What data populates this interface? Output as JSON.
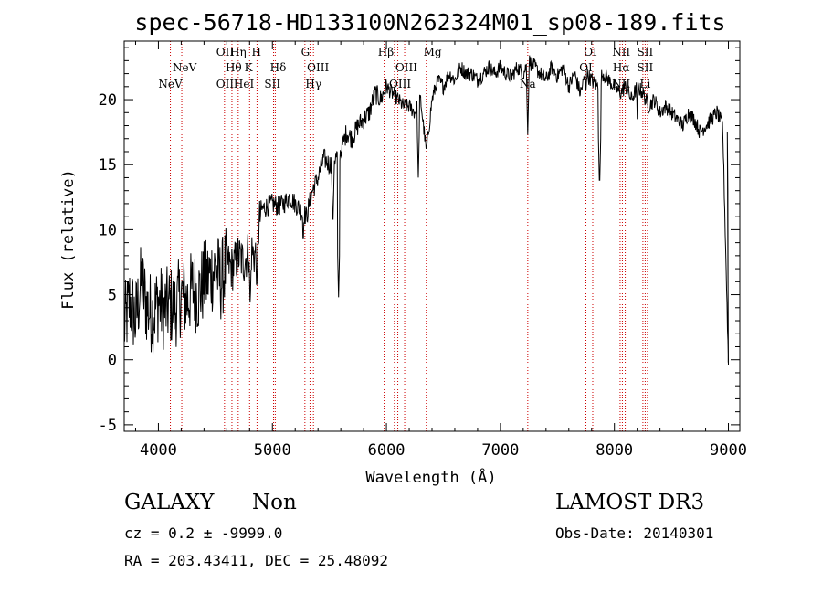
{
  "chart_data": {
    "type": "line",
    "title": "spec-56718-HD133100N262324M01_sp08-189.fits",
    "xlabel": "Wavelength (Å)",
    "ylabel": "Flux (relative)",
    "xlim": [
      3700,
      9100
    ],
    "ylim": [
      -5.5,
      24.5
    ],
    "xticks": [
      4000,
      5000,
      6000,
      7000,
      8000,
      9000
    ],
    "yticks": [
      -5,
      0,
      5,
      10,
      15,
      20
    ],
    "grid": false,
    "series": [
      {
        "name": "spectrum",
        "x": [
          3700,
          3750,
          3800,
          3850,
          3900,
          3950,
          4000,
          4050,
          4100,
          4150,
          4200,
          4250,
          4300,
          4350,
          4400,
          4450,
          4500,
          4550,
          4600,
          4650,
          4700,
          4750,
          4800,
          4850,
          4900,
          4950,
          5000,
          5050,
          5100,
          5150,
          5200,
          5250,
          5300,
          5350,
          5400,
          5450,
          5500,
          5550,
          5600,
          5650,
          5700,
          5750,
          5800,
          5850,
          5900,
          5950,
          6000,
          6050,
          6100,
          6150,
          6200,
          6250,
          6300,
          6350,
          6400,
          6450,
          6500,
          6550,
          6600,
          6650,
          6700,
          6750,
          6800,
          6850,
          6900,
          6950,
          7000,
          7050,
          7100,
          7150,
          7200,
          7250,
          7300,
          7350,
          7400,
          7450,
          7500,
          7550,
          7600,
          7650,
          7700,
          7750,
          7800,
          7850,
          7900,
          7950,
          8000,
          8050,
          8100,
          8150,
          8200,
          8250,
          8300,
          8350,
          8400,
          8450,
          8500,
          8550,
          8600,
          8650,
          8700,
          8750,
          8800,
          8850,
          8900,
          8950,
          9000
        ],
        "y": [
          2.5,
          4.5,
          3.0,
          6.0,
          4.0,
          3.5,
          4.5,
          3.8,
          4.2,
          4.0,
          5.0,
          4.5,
          5.5,
          5.0,
          6.0,
          6.5,
          7.0,
          6.0,
          7.5,
          7.0,
          8.0,
          7.5,
          8.5,
          8.0,
          11.5,
          11.8,
          12.0,
          11.8,
          12.0,
          12.5,
          12.0,
          11.5,
          11.0,
          13.0,
          14.0,
          15.5,
          15.0,
          15.5,
          16.0,
          17.5,
          17.0,
          18.0,
          18.5,
          19.0,
          20.5,
          20.0,
          21.0,
          20.5,
          20.0,
          19.5,
          19.5,
          19.0,
          20.0,
          16.0,
          20.0,
          21.5,
          21.0,
          22.0,
          21.5,
          22.5,
          22.0,
          22.0,
          21.5,
          22.0,
          22.5,
          22.0,
          22.5,
          22.0,
          21.8,
          22.5,
          22.0,
          23.0,
          22.5,
          22.0,
          21.5,
          22.5,
          21.8,
          22.5,
          21.0,
          22.0,
          20.5,
          22.0,
          21.5,
          21.0,
          22.0,
          21.5,
          21.0,
          20.5,
          21.0,
          20.0,
          21.0,
          20.5,
          19.5,
          20.0,
          19.0,
          19.5,
          19.0,
          18.5,
          18.0,
          19.0,
          18.5,
          17.5,
          18.0,
          18.5,
          19.0,
          18.0,
          -0.2
        ]
      }
    ],
    "dips": [
      {
        "x": 4805,
        "y": 4.0
      },
      {
        "x": 4862,
        "y": 5.0
      },
      {
        "x": 5270,
        "y": 8.5
      },
      {
        "x": 5530,
        "y": 10.0
      },
      {
        "x": 5580,
        "y": 4.8
      },
      {
        "x": 6280,
        "y": 14.0
      },
      {
        "x": 7240,
        "y": 17.3
      },
      {
        "x": 7750,
        "y": 20.0
      },
      {
        "x": 7870,
        "y": 13.0
      },
      {
        "x": 8200,
        "y": 18.5
      }
    ],
    "lines": [
      {
        "x": 4105
      },
      {
        "x": 4205
      },
      {
        "x": 4580
      },
      {
        "x": 4645
      },
      {
        "x": 4700
      },
      {
        "x": 4800
      },
      {
        "x": 4865
      },
      {
        "x": 5010
      },
      {
        "x": 5025
      },
      {
        "x": 5285
      },
      {
        "x": 5330
      },
      {
        "x": 5360
      },
      {
        "x": 5980
      },
      {
        "x": 6070
      },
      {
        "x": 6100
      },
      {
        "x": 6160
      },
      {
        "x": 6350
      },
      {
        "x": 7240
      },
      {
        "x": 7750
      },
      {
        "x": 7810
      },
      {
        "x": 8050
      },
      {
        "x": 8070
      },
      {
        "x": 8095
      },
      {
        "x": 8250
      },
      {
        "x": 8270
      },
      {
        "x": 8290
      }
    ],
    "line_labels": [
      {
        "text": "NeV",
        "x": 4230,
        "row": 2
      },
      {
        "text": "NeV",
        "x": 4105,
        "row": 3
      },
      {
        "text": "OII",
        "x": 4585,
        "row": 1
      },
      {
        "text": "Hη",
        "x": 4700,
        "row": 1
      },
      {
        "text": "H",
        "x": 4860,
        "row": 1
      },
      {
        "text": "Hθ",
        "x": 4660,
        "row": 2
      },
      {
        "text": "K",
        "x": 4790,
        "row": 2
      },
      {
        "text": "Hδ",
        "x": 5050,
        "row": 2
      },
      {
        "text": "OII",
        "x": 4585,
        "row": 3
      },
      {
        "text": "HeI",
        "x": 4750,
        "row": 3
      },
      {
        "text": "SII",
        "x": 5000,
        "row": 3
      },
      {
        "text": "G",
        "x": 5290,
        "row": 1
      },
      {
        "text": "OIII",
        "x": 5400,
        "row": 2
      },
      {
        "text": "Hγ",
        "x": 5360,
        "row": 3
      },
      {
        "text": "Hβ",
        "x": 5995,
        "row": 1
      },
      {
        "text": "OIII",
        "x": 6175,
        "row": 2
      },
      {
        "text": "OIII",
        "x": 6120,
        "row": 3
      },
      {
        "text": "Mg",
        "x": 6405,
        "row": 1
      },
      {
        "text": "Na",
        "x": 7240,
        "row": 3
      },
      {
        "text": "OI",
        "x": 7790,
        "row": 1
      },
      {
        "text": "OI",
        "x": 7750,
        "row": 2
      },
      {
        "text": "NII",
        "x": 8060,
        "row": 1
      },
      {
        "text": "Hα",
        "x": 8060,
        "row": 2
      },
      {
        "text": "NII",
        "x": 8060,
        "row": 3
      },
      {
        "text": "SII",
        "x": 8270,
        "row": 1
      },
      {
        "text": "SII",
        "x": 8270,
        "row": 2
      },
      {
        "text": "Li",
        "x": 8270,
        "row": 3
      }
    ]
  },
  "annotations": {
    "class": "GALAXY",
    "subclass": "Non",
    "survey": "LAMOST DR3",
    "redshift": "cz = 0.2 ± -9999.0",
    "obs_date": "Obs-Date: 20140301",
    "coords": "RA = 203.43411, DEC =  25.48092"
  },
  "colors": {
    "spectrum": "#000000",
    "lines": "#cc0000",
    "axis": "#000000"
  }
}
